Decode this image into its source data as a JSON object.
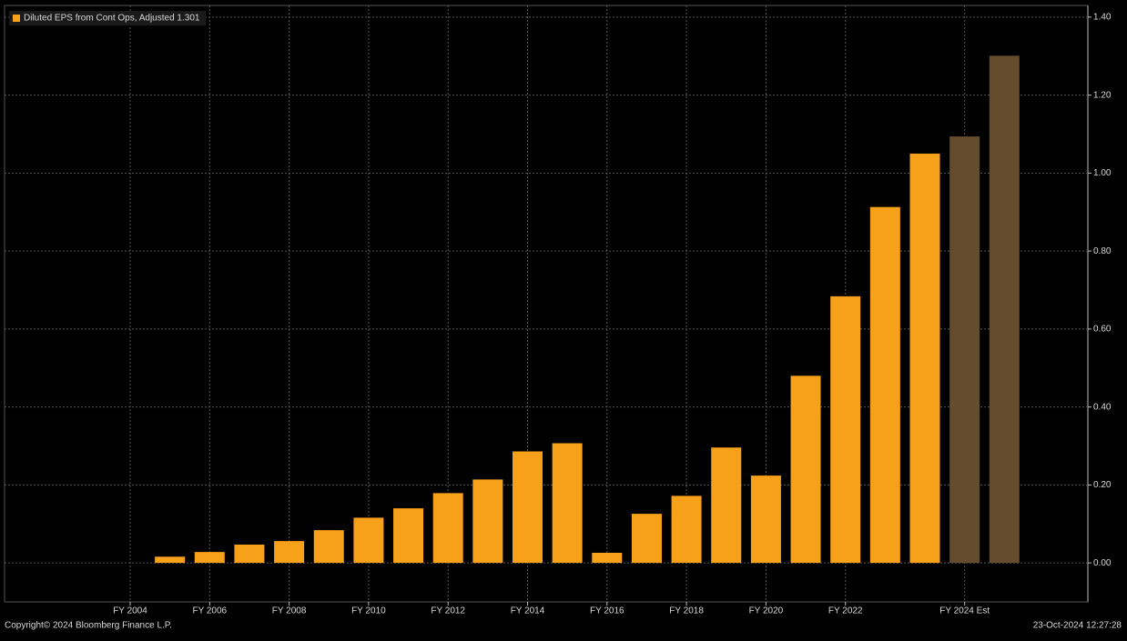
{
  "chart_data": {
    "type": "bar",
    "categories": [
      "FY 2004",
      null,
      "FY 2006",
      null,
      "FY 2008",
      null,
      "FY 2010",
      null,
      "FY 2012",
      null,
      "FY 2014",
      null,
      "FY 2016",
      null,
      "FY 2018",
      null,
      "FY 2020",
      null,
      "FY 2022",
      null,
      null,
      "FY 2024 Est",
      null
    ],
    "series": [
      {
        "name": "Diluted EPS from Cont Ops, Adjusted 1.301",
        "color": "#f7a11a",
        "values": [
          null,
          0.016,
          0.028,
          0.047,
          0.056,
          0.084,
          0.116,
          0.14,
          0.179,
          0.214,
          0.286,
          0.307,
          0.026,
          0.126,
          0.172,
          0.296,
          0.224,
          0.48,
          0.684,
          0.913,
          1.05,
          1.094,
          1.301
        ],
        "colors": [
          "#f7a11a",
          "#f7a11a",
          "#f7a11a",
          "#f7a11a",
          "#f7a11a",
          "#f7a11a",
          "#f7a11a",
          "#f7a11a",
          "#f7a11a",
          "#f7a11a",
          "#f7a11a",
          "#f7a11a",
          "#f7a11a",
          "#f7a11a",
          "#f7a11a",
          "#f7a11a",
          "#f7a11a",
          "#f7a11a",
          "#f7a11a",
          "#f7a11a",
          "#f7a11a",
          "#654c2d",
          "#654c2d"
        ]
      }
    ],
    "ylim": [
      -0.1,
      1.43
    ],
    "yticks": [
      {
        "value": 0,
        "label": "0.00"
      },
      {
        "value": 0.2,
        "label": "0.20"
      },
      {
        "value": 0.4,
        "label": "0.40"
      },
      {
        "value": 0.6,
        "label": "0.60"
      },
      {
        "value": 0.8,
        "label": "0.80"
      },
      {
        "value": 1.0,
        "label": "1.00"
      },
      {
        "value": 1.2,
        "label": "1.20"
      },
      {
        "value": 1.4,
        "label": "1.40"
      }
    ],
    "grid": true,
    "legend": "upper left",
    "footer_left": "Copyright© 2024 Bloomberg Finance L.P.",
    "footer_right": "23-Oct-2024 12:27:28"
  }
}
